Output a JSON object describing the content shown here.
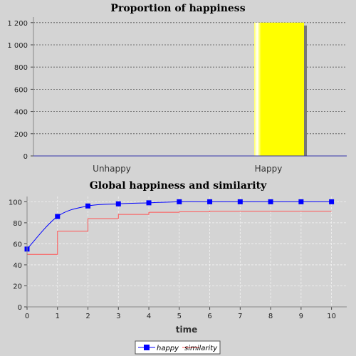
{
  "chart_data": [
    {
      "type": "bar",
      "title": "Proportion of happiness",
      "categories": [
        "Unhappy",
        "Happy"
      ],
      "values": [
        0,
        1200
      ],
      "ylim": [
        0,
        1250
      ],
      "yticks": [
        0,
        200,
        400,
        600,
        800,
        1000,
        1200
      ],
      "ytick_labels": [
        "0",
        "200",
        "400",
        "600",
        "800",
        "1 000",
        "1 200"
      ],
      "grid": true,
      "colors": {
        "bar": "#ffff00",
        "grid": "#555555"
      }
    },
    {
      "type": "line",
      "title": "Global happiness and similarity",
      "xlabel": "time",
      "ylabel": "",
      "xlim": [
        0,
        10.5
      ],
      "ylim": [
        0,
        105
      ],
      "xticks": [
        0,
        1,
        2,
        3,
        4,
        5,
        6,
        7,
        8,
        9,
        10
      ],
      "yticks": [
        0,
        20,
        40,
        60,
        80,
        100
      ],
      "x": [
        0,
        1,
        2,
        3,
        4,
        5,
        6,
        7,
        8,
        9,
        10
      ],
      "series": [
        {
          "name": "happy",
          "values": [
            55,
            86,
            96,
            98,
            99,
            100,
            100,
            100,
            100,
            100,
            100
          ],
          "color": "#0000ff",
          "marker": "square",
          "style": "smooth"
        },
        {
          "name": "similarity",
          "values": [
            50,
            72,
            84,
            88,
            90,
            90.5,
            91,
            91,
            91,
            91,
            91
          ],
          "color": "#ff5555",
          "marker": "none",
          "style": "step"
        }
      ],
      "grid": true,
      "legend": "bottom-center"
    }
  ]
}
